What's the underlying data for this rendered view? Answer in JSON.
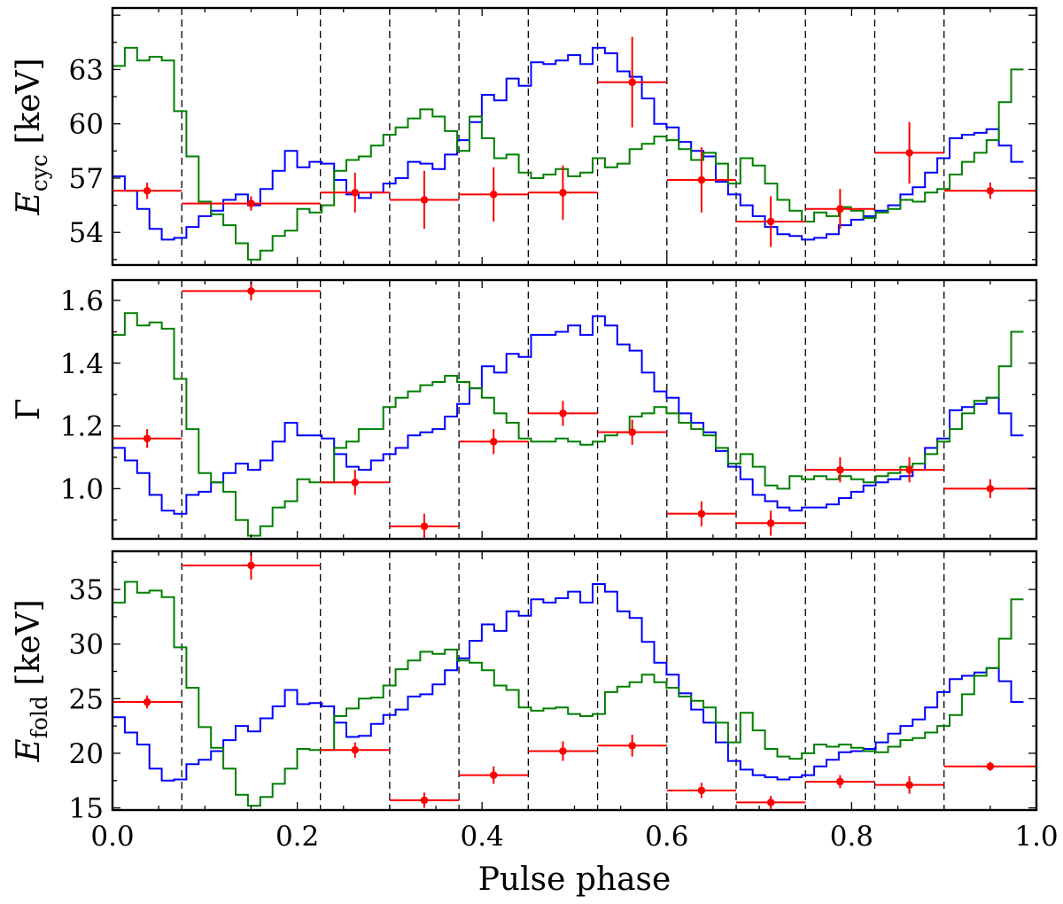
{
  "chart_data": [
    {
      "type": "line",
      "panel": "top",
      "ylabel": {
        "main": "E",
        "sub": "cyc",
        "unit": " [keV]"
      },
      "ylim": [
        52.2,
        66.4
      ],
      "yticks": [
        54,
        57,
        60,
        63
      ],
      "ytick_labels": [
        "54",
        "57",
        "60",
        "63"
      ],
      "vlines": [
        0.075,
        0.225,
        0.3,
        0.375,
        0.45,
        0.525,
        0.6,
        0.675,
        0.75,
        0.825,
        0.9
      ],
      "blue": [
        57.1,
        56.3,
        55.3,
        54.2,
        53.6,
        53.7,
        54.3,
        54.9,
        55.2,
        55.8,
        56.1,
        55.5,
        56.4,
        57.4,
        58.5,
        57.6,
        57.9,
        57.8,
        56.9,
        56.1,
        55.9,
        56.2,
        56.7,
        57.0,
        57.9,
        57.8,
        57.5,
        58.3,
        59.1,
        60.1,
        61.6,
        61.3,
        62.5,
        62.1,
        63.4,
        63.3,
        63.5,
        63.8,
        63.3,
        64.2,
        63.9,
        62.9,
        62.6,
        61.4,
        60.0,
        59.8,
        59.0,
        58.5,
        58.2,
        56.8,
        56.1,
        55.5,
        54.9,
        54.3,
        53.9,
        53.8,
        53.6,
        53.7,
        53.9,
        54.4,
        54.7,
        54.9,
        55.2,
        55.5,
        56.1,
        56.5,
        57.3,
        58.1,
        59.2,
        59.4,
        59.5,
        59.7,
        58.8,
        57.9
      ],
      "green": [
        63.2,
        64.2,
        63.5,
        63.7,
        63.5,
        60.7,
        58.2,
        55.7,
        55.0,
        54.4,
        53.4,
        52.5,
        53.0,
        53.8,
        54.1,
        55.3,
        55.1,
        55.5,
        57.4,
        58.0,
        58.2,
        58.8,
        59.4,
        59.8,
        60.3,
        60.8,
        60.4,
        59.6,
        58.5,
        60.4,
        59.2,
        58.1,
        58.3,
        57.3,
        57.0,
        57.2,
        57.5,
        57.1,
        57.3,
        58.1,
        57.6,
        57.8,
        58.6,
        58.9,
        59.3,
        59.1,
        58.6,
        58.0,
        58.4,
        57.8,
        56.7,
        58.1,
        57.7,
        56.7,
        55.8,
        55.2,
        54.6,
        55.1,
        54.9,
        55.4,
        55.2,
        54.8,
        55.1,
        55.3,
        55.8,
        55.7,
        56.2,
        56.4,
        57.2,
        57.9,
        58.4,
        59.1,
        61.2,
        63.0
      ],
      "red": [
        {
          "x": 0.0375,
          "xerr": 0.0375,
          "y": 56.3,
          "yerr": 0.45
        },
        {
          "x": 0.15,
          "xerr": 0.075,
          "y": 55.6,
          "yerr": 0.4
        },
        {
          "x": 0.2625,
          "xerr": 0.0375,
          "y": 56.2,
          "yerr": 1.1
        },
        {
          "x": 0.3375,
          "xerr": 0.0375,
          "y": 55.8,
          "yerr": 1.6
        },
        {
          "x": 0.4125,
          "xerr": 0.0375,
          "y": 56.1,
          "yerr": 1.5
        },
        {
          "x": 0.4875,
          "xerr": 0.0375,
          "y": 56.2,
          "yerr": 1.5
        },
        {
          "x": 0.5625,
          "xerr": 0.0375,
          "y": 62.3,
          "yerr": 2.5
        },
        {
          "x": 0.6375,
          "xerr": 0.0375,
          "y": 56.9,
          "yerr": 1.8
        },
        {
          "x": 0.7125,
          "xerr": 0.0375,
          "y": 54.6,
          "yerr": 1.4
        },
        {
          "x": 0.7875,
          "xerr": 0.0375,
          "y": 55.3,
          "yerr": 1.1
        },
        {
          "x": 0.8625,
          "xerr": 0.0375,
          "y": 58.4,
          "yerr": 1.7
        },
        {
          "x": 0.95,
          "xerr": 0.05,
          "y": 56.3,
          "yerr": 0.45
        }
      ]
    },
    {
      "type": "line",
      "panel": "middle",
      "ylabel": {
        "main": "Γ",
        "sub": "",
        "unit": ""
      },
      "ylim": [
        0.84,
        1.665
      ],
      "yticks": [
        1.0,
        1.2,
        1.4,
        1.6
      ],
      "ytick_labels": [
        "1.0",
        "1.2",
        "1.4",
        "1.6"
      ],
      "vlines": [
        0.075,
        0.225,
        0.3,
        0.375,
        0.45,
        0.525,
        0.6,
        0.675,
        0.75,
        0.825,
        0.9
      ],
      "blue": [
        1.13,
        1.09,
        1.05,
        0.98,
        0.93,
        0.92,
        0.98,
        0.99,
        1.02,
        1.05,
        1.08,
        1.06,
        1.09,
        1.15,
        1.21,
        1.17,
        1.17,
        1.16,
        1.11,
        1.07,
        1.06,
        1.09,
        1.11,
        1.13,
        1.17,
        1.18,
        1.19,
        1.23,
        1.27,
        1.32,
        1.39,
        1.37,
        1.43,
        1.42,
        1.49,
        1.49,
        1.5,
        1.52,
        1.49,
        1.55,
        1.52,
        1.46,
        1.44,
        1.37,
        1.31,
        1.29,
        1.24,
        1.21,
        1.18,
        1.12,
        1.07,
        1.03,
        0.98,
        0.96,
        0.94,
        0.93,
        0.94,
        0.94,
        0.95,
        0.97,
        0.99,
        1.01,
        1.02,
        1.03,
        1.04,
        1.06,
        1.13,
        1.16,
        1.25,
        1.26,
        1.27,
        1.29,
        1.24,
        1.17
      ],
      "green": [
        1.49,
        1.56,
        1.52,
        1.53,
        1.51,
        1.35,
        1.19,
        1.05,
        1.02,
        0.99,
        0.9,
        0.85,
        0.88,
        0.94,
        0.96,
        1.03,
        1.02,
        1.02,
        1.13,
        1.15,
        1.19,
        1.19,
        1.26,
        1.29,
        1.31,
        1.33,
        1.34,
        1.36,
        1.34,
        1.32,
        1.29,
        1.24,
        1.21,
        1.16,
        1.15,
        1.15,
        1.16,
        1.15,
        1.14,
        1.15,
        1.17,
        1.18,
        1.23,
        1.24,
        1.26,
        1.24,
        1.21,
        1.19,
        1.17,
        1.13,
        1.08,
        1.11,
        1.07,
        1.01,
        1.0,
        1.04,
        1.03,
        1.04,
        1.03,
        1.04,
        1.03,
        1.02,
        1.04,
        1.05,
        1.07,
        1.08,
        1.11,
        1.15,
        1.19,
        1.24,
        1.28,
        1.29,
        1.39,
        1.5
      ],
      "red": [
        {
          "x": 0.0375,
          "xerr": 0.0375,
          "y": 1.16,
          "yerr": 0.03
        },
        {
          "x": 0.15,
          "xerr": 0.075,
          "y": 1.63,
          "yerr": 0.03
        },
        {
          "x": 0.2625,
          "xerr": 0.0375,
          "y": 1.02,
          "yerr": 0.04
        },
        {
          "x": 0.3375,
          "xerr": 0.0375,
          "y": 0.88,
          "yerr": 0.04
        },
        {
          "x": 0.4125,
          "xerr": 0.0375,
          "y": 1.15,
          "yerr": 0.04
        },
        {
          "x": 0.4875,
          "xerr": 0.0375,
          "y": 1.24,
          "yerr": 0.04
        },
        {
          "x": 0.5625,
          "xerr": 0.0375,
          "y": 1.18,
          "yerr": 0.04
        },
        {
          "x": 0.6375,
          "xerr": 0.0375,
          "y": 0.92,
          "yerr": 0.04
        },
        {
          "x": 0.7125,
          "xerr": 0.0375,
          "y": 0.89,
          "yerr": 0.04
        },
        {
          "x": 0.7875,
          "xerr": 0.0375,
          "y": 1.06,
          "yerr": 0.04
        },
        {
          "x": 0.8625,
          "xerr": 0.0375,
          "y": 1.06,
          "yerr": 0.04
        },
        {
          "x": 0.95,
          "xerr": 0.05,
          "y": 1.0,
          "yerr": 0.03
        }
      ]
    },
    {
      "type": "line",
      "panel": "bottom",
      "ylabel": {
        "main": "E",
        "sub": "fold",
        "unit": " [keV]"
      },
      "xlabel": "Pulse phase",
      "xlim": [
        0.0,
        1.0
      ],
      "xticks": [
        0.0,
        0.2,
        0.4,
        0.6,
        0.8,
        1.0
      ],
      "xtick_labels": [
        "0.0",
        "0.2",
        "0.4",
        "0.6",
        "0.8",
        "1.0"
      ],
      "ylim": [
        14.8,
        38.5
      ],
      "yticks": [
        15,
        20,
        25,
        30,
        35
      ],
      "ytick_labels": [
        "15",
        "20",
        "25",
        "30",
        "35"
      ],
      "vlines": [
        0.075,
        0.225,
        0.3,
        0.375,
        0.45,
        0.525,
        0.6,
        0.675,
        0.75,
        0.825,
        0.9
      ],
      "blue": [
        23.3,
        21.9,
        20.8,
        18.6,
        17.5,
        17.6,
        19.0,
        19.4,
        20.2,
        21.2,
        22.5,
        22.0,
        23.2,
        24.3,
        25.8,
        24.5,
        24.6,
        24.3,
        22.8,
        21.5,
        21.6,
        22.7,
        23.5,
        24.0,
        25.2,
        25.4,
        26.3,
        27.6,
        28.7,
        30.3,
        31.8,
        31.2,
        33.0,
        32.6,
        34.1,
        33.8,
        34.2,
        34.8,
        33.8,
        35.5,
        34.8,
        33.0,
        32.4,
        30.2,
        28.3,
        27.2,
        25.5,
        24.0,
        22.8,
        21.0,
        19.3,
        18.5,
        18.0,
        17.8,
        17.6,
        17.8,
        18.0,
        18.8,
        19.4,
        20.1,
        20.2,
        20.4,
        21.0,
        21.8,
        22.5,
        23.1,
        24.2,
        25.6,
        26.8,
        27.1,
        27.4,
        27.8,
        26.6,
        24.7
      ],
      "green": [
        33.8,
        35.7,
        34.7,
        34.9,
        34.3,
        29.7,
        26.0,
        22.4,
        20.5,
        18.6,
        16.2,
        15.2,
        16.0,
        17.2,
        18.6,
        20.4,
        20.3,
        20.3,
        23.4,
        24.1,
        25.0,
        25.1,
        26.2,
        27.7,
        28.5,
        29.3,
        29.1,
        29.5,
        28.5,
        28.3,
        27.6,
        26.2,
        25.8,
        24.2,
        23.9,
        24.1,
        24.2,
        23.6,
        23.4,
        23.6,
        25.6,
        26.1,
        26.5,
        27.2,
        26.5,
        26.0,
        25.2,
        24.8,
        24.2,
        22.8,
        21.0,
        23.7,
        22.1,
        20.4,
        19.7,
        19.5,
        20.0,
        20.8,
        20.6,
        20.8,
        20.5,
        20.2,
        20.1,
        20.6,
        21.2,
        21.4,
        21.9,
        22.5,
        23.5,
        25.4,
        27.1,
        27.8,
        30.5,
        34.1
      ],
      "red": [
        {
          "x": 0.0375,
          "xerr": 0.0375,
          "y": 24.7,
          "yerr": 0.6
        },
        {
          "x": 0.15,
          "xerr": 0.075,
          "y": 37.2,
          "yerr": 1.3
        },
        {
          "x": 0.2625,
          "xerr": 0.0375,
          "y": 20.3,
          "yerr": 0.7
        },
        {
          "x": 0.3375,
          "xerr": 0.0375,
          "y": 15.7,
          "yerr": 0.7
        },
        {
          "x": 0.4125,
          "xerr": 0.0375,
          "y": 18.0,
          "yerr": 0.8
        },
        {
          "x": 0.4875,
          "xerr": 0.0375,
          "y": 20.2,
          "yerr": 0.9
        },
        {
          "x": 0.5625,
          "xerr": 0.0375,
          "y": 20.7,
          "yerr": 1.0
        },
        {
          "x": 0.6375,
          "xerr": 0.0375,
          "y": 16.6,
          "yerr": 0.7
        },
        {
          "x": 0.7125,
          "xerr": 0.0375,
          "y": 15.5,
          "yerr": 0.6
        },
        {
          "x": 0.7875,
          "xerr": 0.0375,
          "y": 17.4,
          "yerr": 0.6
        },
        {
          "x": 0.8625,
          "xerr": 0.0375,
          "y": 17.1,
          "yerr": 0.8
        },
        {
          "x": 0.95,
          "xerr": 0.05,
          "y": 18.8,
          "yerr": 0.4
        }
      ]
    }
  ],
  "colors": {
    "blue": "#0000ff",
    "green": "#007f00",
    "red": "#ff0000",
    "vline": "#000000"
  }
}
